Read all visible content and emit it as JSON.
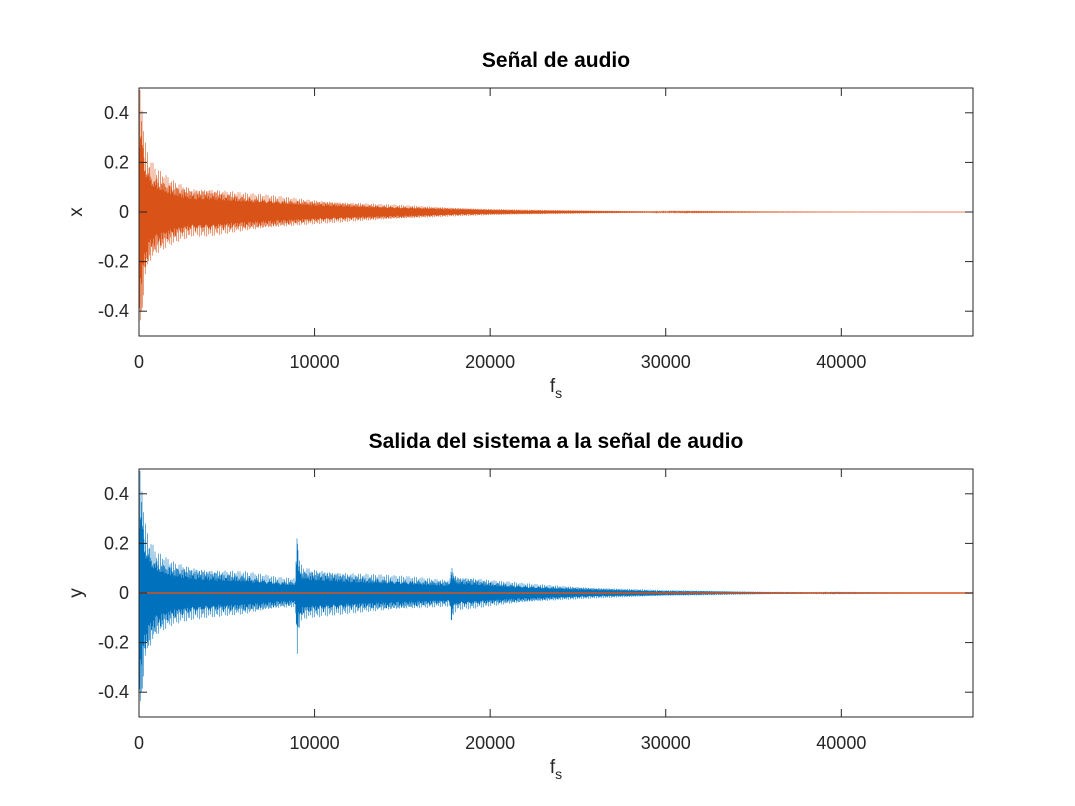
{
  "figure": {
    "background": "#ffffff",
    "axis_color": "#262626"
  },
  "chart_data": [
    {
      "type": "line",
      "title": "Señal de audio",
      "xlabel": "f",
      "xlabel_sub": "s",
      "ylabel": "x",
      "xlim": [
        0,
        47500
      ],
      "ylim": [
        -0.5,
        0.5
      ],
      "xticks": [
        0,
        10000,
        20000,
        30000,
        40000
      ],
      "xtick_labels": [
        "0",
        "10000",
        "20000",
        "30000",
        "40000"
      ],
      "yticks": [
        -0.4,
        -0.2,
        0,
        0.2,
        0.4
      ],
      "ytick_labels": [
        "-0.4",
        "-0.2",
        "0",
        "0.2",
        "0.4"
      ],
      "grid": false,
      "series": [
        {
          "name": "x",
          "color": "#d95319",
          "envelope": {
            "t": [
              0,
              30,
              80,
              150,
              300,
              600,
              1000,
              2000,
              3000,
              4000,
              6000,
              8000,
              10000,
              12000,
              14000,
              16000,
              18000,
              20000,
              22000,
              24000,
              26000,
              28000,
              30000,
              32000,
              34000,
              36000,
              38000,
              40000,
              44000,
              47500
            ],
            "upper": [
              0.1,
              0.5,
              0.5,
              0.5,
              0.3,
              0.22,
              0.18,
              0.13,
              0.1,
              0.1,
              0.08,
              0.065,
              0.05,
              0.04,
              0.032,
              0.025,
              0.018,
              0.013,
              0.01,
              0.008,
              0.006,
              0.004,
              0.003,
              0.002,
              0.0015,
              0.001,
              0.0008,
              0.0005,
              0.0003,
              0.0002
            ],
            "lower": [
              -0.1,
              -0.5,
              -0.5,
              -0.5,
              -0.3,
              -0.22,
              -0.18,
              -0.13,
              -0.1,
              -0.1,
              -0.08,
              -0.065,
              -0.05,
              -0.04,
              -0.032,
              -0.025,
              -0.018,
              -0.013,
              -0.01,
              -0.008,
              -0.006,
              -0.004,
              -0.003,
              -0.002,
              -0.0015,
              -0.001,
              -0.0008,
              -0.0005,
              -0.0003,
              -0.0002
            ]
          }
        }
      ]
    },
    {
      "type": "line",
      "title": "Salida del sistema a la señal de audio",
      "xlabel": "f",
      "xlabel_sub": "s",
      "ylabel": "y",
      "xlim": [
        0,
        47500
      ],
      "ylim": [
        -0.5,
        0.5
      ],
      "xticks": [
        0,
        10000,
        20000,
        30000,
        40000
      ],
      "xtick_labels": [
        "0",
        "10000",
        "20000",
        "30000",
        "40000"
      ],
      "yticks": [
        -0.4,
        -0.2,
        0,
        0.2,
        0.4
      ],
      "ytick_labels": [
        "-0.4",
        "-0.2",
        "0",
        "0.2",
        "0.4"
      ],
      "grid": false,
      "series": [
        {
          "name": "y",
          "color": "#0072bd",
          "envelope": {
            "t": [
              0,
              30,
              80,
              150,
              300,
              600,
              1000,
              2000,
              3000,
              4000,
              6000,
              8000,
              8900,
              8950,
              9000,
              9100,
              9300,
              10000,
              12000,
              14000,
              16000,
              17700,
              17750,
              17800,
              17900,
              18100,
              19000,
              20000,
              22000,
              24000,
              26000,
              28000,
              30000,
              32000,
              34000,
              36000,
              38000,
              40000,
              44000,
              47500
            ],
            "upper": [
              0.1,
              0.5,
              0.5,
              0.5,
              0.3,
              0.22,
              0.17,
              0.13,
              0.11,
              0.1,
              0.09,
              0.065,
              0.06,
              0.15,
              0.3,
              0.15,
              0.11,
              0.1,
              0.085,
              0.075,
              0.065,
              0.055,
              0.09,
              0.13,
              0.09,
              0.07,
              0.065,
              0.055,
              0.04,
              0.03,
              0.022,
              0.017,
              0.012,
              0.01,
              0.007,
              0.005,
              0.004,
              0.002,
              0.001,
              0.0005
            ],
            "lower": [
              -0.1,
              -0.5,
              -0.5,
              -0.5,
              -0.3,
              -0.24,
              -0.18,
              -0.13,
              -0.11,
              -0.1,
              -0.09,
              -0.065,
              -0.06,
              -0.14,
              -0.29,
              -0.15,
              -0.11,
              -0.1,
              -0.085,
              -0.075,
              -0.065,
              -0.055,
              -0.09,
              -0.15,
              -0.09,
              -0.07,
              -0.065,
              -0.055,
              -0.04,
              -0.03,
              -0.022,
              -0.017,
              -0.012,
              -0.01,
              -0.007,
              -0.005,
              -0.004,
              -0.002,
              -0.001,
              -0.0005
            ]
          }
        },
        {
          "name": "zero line",
          "color": "#d95319",
          "x": [
            0,
            47500
          ],
          "y": [
            0,
            0
          ]
        }
      ]
    }
  ]
}
